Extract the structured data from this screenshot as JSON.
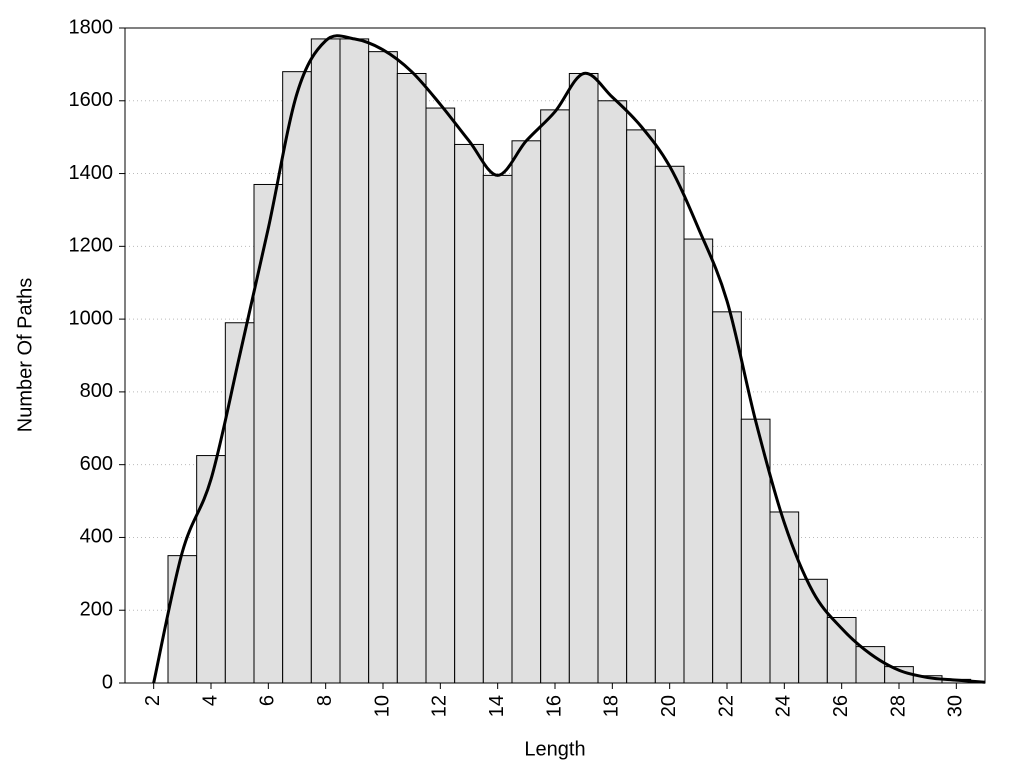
{
  "chart_data": {
    "type": "histogram",
    "bins": [
      2.5,
      3.5,
      4.5,
      5.5,
      6.5,
      7.5,
      8.5,
      9.5,
      10.5,
      11.5,
      12.5,
      13.5,
      14.5,
      15.5,
      16.5,
      17.5,
      18.5,
      19.5,
      20.5,
      21.5,
      22.5,
      23.5,
      24.5,
      25.5,
      26.5,
      27.5,
      28.5,
      29.5,
      30.5
    ],
    "values": [
      350,
      625,
      990,
      1370,
      1680,
      1770,
      1770,
      1735,
      1675,
      1580,
      1480,
      1395,
      1490,
      1575,
      1675,
      1600,
      1520,
      1420,
      1220,
      1020,
      725,
      470,
      285,
      180,
      100,
      45,
      20,
      10
    ],
    "color": "#e0e0e0",
    "curve": {
      "x": [
        2,
        3,
        4,
        5,
        6,
        7,
        8,
        9,
        10,
        11,
        12,
        13,
        14,
        15,
        16,
        17,
        18,
        19,
        20,
        21,
        22,
        23,
        24,
        25,
        26,
        27,
        28,
        29,
        30,
        31
      ],
      "values": [
        0,
        360,
        560,
        900,
        1250,
        1620,
        1765,
        1770,
        1740,
        1680,
        1590,
        1490,
        1395,
        1490,
        1570,
        1675,
        1610,
        1530,
        1420,
        1250,
        1050,
        720,
        440,
        250,
        150,
        80,
        35,
        15,
        8,
        2
      ],
      "color": "#000000"
    },
    "xlabel": "Length",
    "ylabel": "Number Of Paths",
    "xlim": [
      1,
      31
    ],
    "ylim": [
      0,
      1800
    ],
    "xticks": [
      2,
      4,
      6,
      8,
      10,
      12,
      14,
      16,
      18,
      20,
      22,
      24,
      26,
      28,
      30
    ],
    "yticks": [
      0,
      200,
      400,
      600,
      800,
      1000,
      1200,
      1400,
      1600,
      1800
    ],
    "grid": true
  }
}
